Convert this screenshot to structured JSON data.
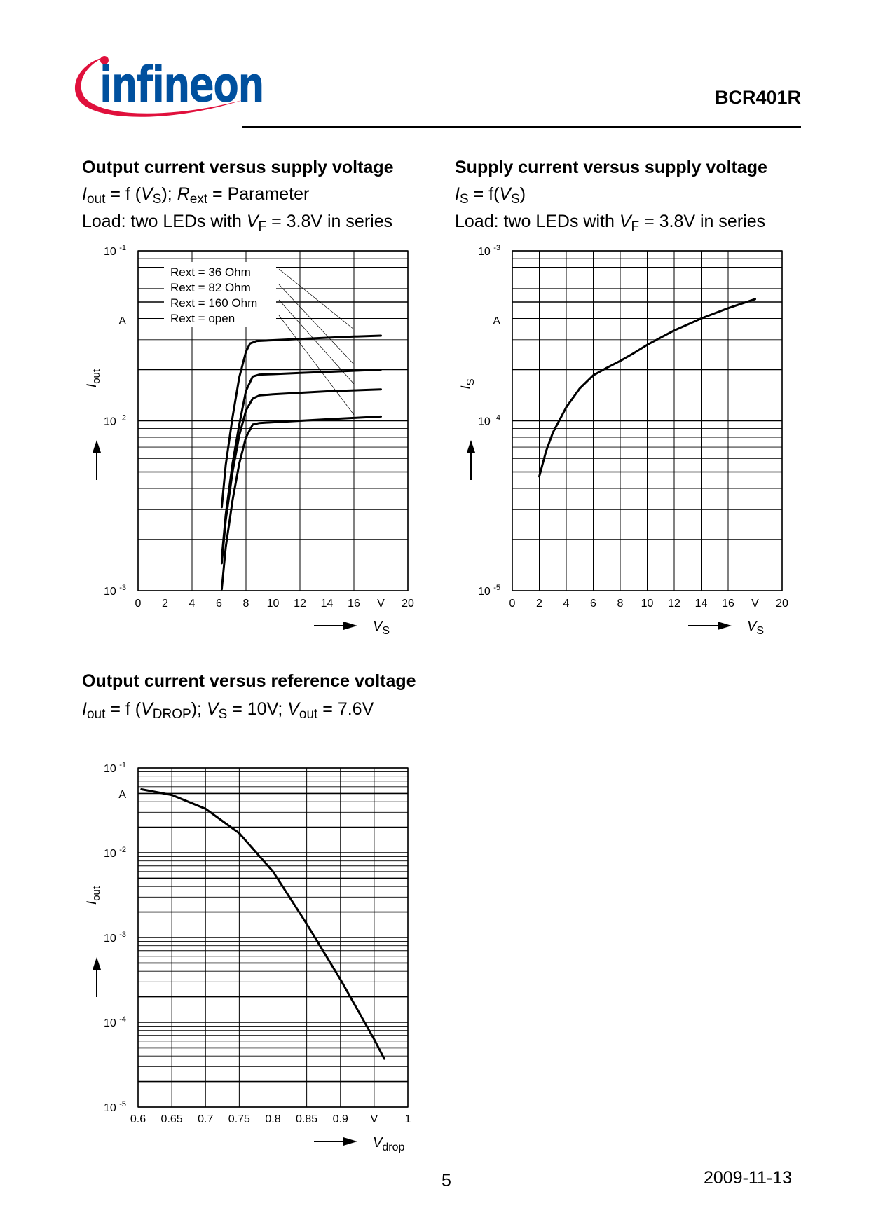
{
  "header": {
    "logo_text": "infineon",
    "part_number": "BCR401R"
  },
  "footer": {
    "page_number": "5",
    "date": "2009-11-13"
  },
  "colors": {
    "logo_blue": "#00509e",
    "logo_red": "#e0103c",
    "ink": "#000000"
  },
  "chart_data": [
    {
      "id": "chart1",
      "type": "line",
      "title": "Output current versus supply voltage",
      "subtitle": {
        "y": "I",
        "y_sub": "out",
        "f": " = f (",
        "x": "V",
        "x_sub": "S",
        "param_pre": "); ",
        "p": "R",
        "p_sub": "ext",
        "param_post": " = Parameter"
      },
      "load_line": {
        "pre": "Load: two LEDs with ",
        "v": "V",
        "v_sub": "F",
        "post": " = 3.8V in series"
      },
      "xlabel": "V",
      "xlabel_sub": "S",
      "ylabel": "I",
      "ylabel_sub": "out",
      "y_unit": "A",
      "xlim": [
        0,
        20
      ],
      "ylim": [
        0.001,
        0.1
      ],
      "yscale": "log",
      "x_tick_labels": [
        "0",
        "2",
        "4",
        "6",
        "8",
        "10",
        "12",
        "14",
        "16",
        "V",
        "20"
      ],
      "y_decades": [
        {
          "base": "10",
          "exp": "-1"
        },
        {
          "base": "10",
          "exp": "-2"
        },
        {
          "base": "10",
          "exp": "-3"
        }
      ],
      "legend": [
        "Rext = 36 Ohm",
        "Rext = 82 Ohm",
        "Rext = 160 Ohm",
        "Rext = open"
      ],
      "series": [
        {
          "name": "Rext = 36 Ohm",
          "x": [
            6.2,
            6.5,
            7.0,
            7.5,
            8.0,
            8.3,
            8.8,
            10,
            12,
            14,
            16,
            18
          ],
          "y": [
            0.0031,
            0.0055,
            0.0105,
            0.018,
            0.0255,
            0.0285,
            0.0295,
            0.0298,
            0.0303,
            0.0308,
            0.0313,
            0.0317
          ]
        },
        {
          "name": "Rext = 82 Ohm",
          "x": [
            6.2,
            6.5,
            7.0,
            7.5,
            8.0,
            8.5,
            9.0,
            10,
            12,
            14,
            16,
            18
          ],
          "y": [
            0.00155,
            0.0028,
            0.0056,
            0.0095,
            0.015,
            0.0182,
            0.0187,
            0.0188,
            0.0191,
            0.0194,
            0.0197,
            0.02
          ]
        },
        {
          "name": "Rext = 160 Ohm",
          "x": [
            6.2,
            6.5,
            7.0,
            7.5,
            8.0,
            8.5,
            9.0,
            10,
            12,
            14,
            16,
            18
          ],
          "y": [
            0.00145,
            0.0026,
            0.005,
            0.0082,
            0.0115,
            0.0135,
            0.0141,
            0.0143,
            0.0146,
            0.0149,
            0.0151,
            0.0153
          ]
        },
        {
          "name": "Rext = open",
          "x": [
            6.2,
            6.5,
            7.0,
            7.5,
            8.0,
            8.5,
            9.0,
            10,
            12,
            14,
            16,
            18
          ],
          "y": [
            0.00102,
            0.0018,
            0.0034,
            0.0056,
            0.008,
            0.0095,
            0.0097,
            0.0098,
            0.01,
            0.0102,
            0.0104,
            0.0106
          ]
        }
      ]
    },
    {
      "id": "chart2",
      "type": "line",
      "title": "Supply current versus supply voltage",
      "subtitle": {
        "y": "I",
        "y_sub": "S",
        "f": " = f(",
        "x": "V",
        "x_sub": "S",
        "post": ")"
      },
      "load_line": {
        "pre": "Load: two LEDs with ",
        "v": "V",
        "v_sub": "F",
        "post": " = 3.8V in series"
      },
      "xlabel": "V",
      "xlabel_sub": "S",
      "ylabel": "I",
      "ylabel_sub": "S",
      "y_unit": "A",
      "xlim": [
        0,
        20
      ],
      "ylim": [
        1e-05,
        0.001
      ],
      "yscale": "log",
      "x_tick_labels": [
        "0",
        "2",
        "4",
        "6",
        "8",
        "10",
        "12",
        "14",
        "16",
        "V",
        "20"
      ],
      "y_decades": [
        {
          "base": "10",
          "exp": "-3"
        },
        {
          "base": "10",
          "exp": "-4"
        },
        {
          "base": "10",
          "exp": "-5"
        }
      ],
      "series": [
        {
          "name": "",
          "x": [
            2,
            2.5,
            3,
            4,
            5,
            6,
            7,
            8,
            9,
            10,
            12,
            14,
            16,
            18
          ],
          "y": [
            4.7e-05,
            6.6e-05,
            8.5e-05,
            0.00012,
            0.000155,
            0.000185,
            0.000205,
            0.000225,
            0.00025,
            0.00028,
            0.00034,
            0.0004,
            0.00046,
            0.00052
          ]
        }
      ]
    },
    {
      "id": "chart3",
      "type": "line",
      "title": "Output current versus reference voltage",
      "subtitle": {
        "y": "I",
        "y_sub": "out",
        "f": " = f (",
        "x": "V",
        "x_sub": "DROP",
        "mid": "); ",
        "v2": "V",
        "v2_sub": "S",
        "mid2": " = 10V; ",
        "v3": "V",
        "v3_sub": "out",
        "post": " = 7.6V"
      },
      "xlabel": "V",
      "xlabel_sub": "drop",
      "ylabel": "I",
      "ylabel_sub": "out",
      "y_unit": "A",
      "xlim": [
        0.6,
        1.0
      ],
      "ylim": [
        1e-05,
        0.1
      ],
      "yscale": "log",
      "x_tick_labels": [
        "0.6",
        "0.65",
        "0.7",
        "0.75",
        "0.8",
        "0.85",
        "0.9",
        "V",
        "1"
      ],
      "y_decades": [
        {
          "base": "10",
          "exp": "-1"
        },
        {
          "base": "10",
          "exp": "-2"
        },
        {
          "base": "10",
          "exp": "-3"
        },
        {
          "base": "10",
          "exp": "-4"
        },
        {
          "base": "10",
          "exp": "-5"
        }
      ],
      "series": [
        {
          "name": "",
          "x": [
            0.605,
            0.65,
            0.7,
            0.75,
            0.8,
            0.85,
            0.9,
            0.95,
            0.965
          ],
          "y": [
            0.056,
            0.048,
            0.033,
            0.017,
            0.006,
            0.00145,
            0.00032,
            6.3e-05,
            3.7e-05
          ]
        }
      ]
    }
  ]
}
